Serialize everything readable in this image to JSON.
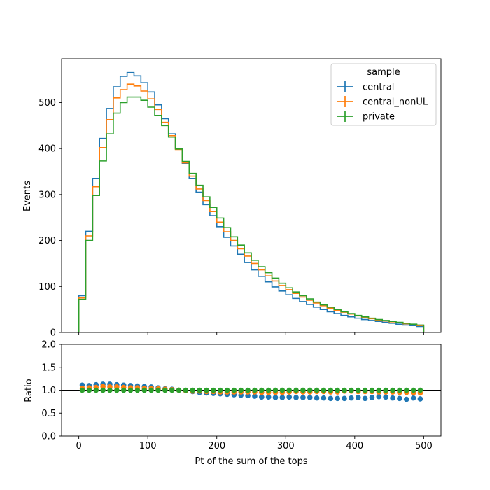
{
  "chart_data": [
    {
      "type": "line",
      "step": true,
      "xlabel": "",
      "ylabel": "Events",
      "xlim": [
        -25,
        525
      ],
      "ylim": [
        0,
        595
      ],
      "y_ticks": [
        "0",
        "100",
        "200",
        "300",
        "400",
        "500"
      ],
      "x_ticks_shown": false,
      "grid": false,
      "legend": {
        "title": "sample",
        "placement": "top-right"
      },
      "bin_edges": [
        0,
        10,
        20,
        30,
        40,
        50,
        60,
        70,
        80,
        90,
        100,
        110,
        120,
        130,
        140,
        150,
        160,
        170,
        180,
        190,
        200,
        210,
        220,
        230,
        240,
        250,
        260,
        270,
        280,
        290,
        300,
        310,
        320,
        330,
        340,
        350,
        360,
        370,
        380,
        390,
        400,
        410,
        420,
        430,
        440,
        450,
        460,
        470,
        480,
        490,
        500
      ],
      "series": [
        {
          "name": "central",
          "color": "#1f77b4",
          "values": [
            80,
            220,
            335,
            422,
            487,
            534,
            557,
            565,
            558,
            543,
            523,
            495,
            465,
            432,
            400,
            368,
            335,
            305,
            278,
            254,
            230,
            207,
            188,
            170,
            152,
            136,
            122,
            110,
            99,
            90,
            82,
            74,
            67,
            61,
            55,
            50,
            45,
            41,
            37,
            34,
            31,
            28,
            26,
            24,
            22,
            20,
            18,
            16,
            15,
            13
          ]
        },
        {
          "name": "central_nonUL",
          "color": "#ff7f0e",
          "values": [
            75,
            210,
            317,
            402,
            463,
            510,
            528,
            540,
            536,
            525,
            508,
            485,
            457,
            428,
            398,
            369,
            340,
            312,
            287,
            263,
            240,
            219,
            200,
            182,
            166,
            150,
            136,
            123,
            112,
            102,
            93,
            85,
            77,
            70,
            64,
            58,
            53,
            48,
            44,
            40,
            36,
            33,
            30,
            27,
            25,
            23,
            21,
            19,
            17,
            15
          ]
        },
        {
          "name": "private",
          "color": "#2ca02c",
          "values": [
            72,
            200,
            298,
            373,
            432,
            477,
            500,
            512,
            512,
            505,
            490,
            472,
            450,
            425,
            399,
            372,
            346,
            320,
            295,
            272,
            249,
            228,
            208,
            190,
            173,
            157,
            143,
            130,
            118,
            107,
            97,
            88,
            80,
            73,
            66,
            60,
            55,
            50,
            45,
            41,
            37,
            34,
            31,
            28,
            26,
            24,
            22,
            20,
            18,
            16
          ]
        }
      ]
    },
    {
      "type": "scatter",
      "xlabel": "Pt of the sum of the tops",
      "ylabel": "Ratio",
      "xlim": [
        -25,
        525
      ],
      "ylim": [
        0,
        2
      ],
      "x_ticks": [
        "0",
        "100",
        "200",
        "300",
        "400",
        "500"
      ],
      "y_ticks": [
        "0.0",
        "0.5",
        "1.0",
        "1.5",
        "2.0"
      ],
      "reference_line": 1.0,
      "grid": false,
      "x": [
        5,
        15,
        25,
        35,
        45,
        55,
        65,
        75,
        85,
        95,
        105,
        115,
        125,
        135,
        145,
        155,
        165,
        175,
        185,
        195,
        205,
        215,
        225,
        235,
        245,
        255,
        265,
        275,
        285,
        295,
        305,
        315,
        325,
        335,
        345,
        355,
        365,
        375,
        385,
        395,
        405,
        415,
        425,
        435,
        445,
        455,
        465,
        475,
        485,
        495
      ],
      "series": [
        {
          "name": "central",
          "color": "#1f77b4",
          "values": [
            1.11,
            1.1,
            1.12,
            1.13,
            1.13,
            1.12,
            1.11,
            1.1,
            1.09,
            1.08,
            1.07,
            1.05,
            1.03,
            1.02,
            1.0,
            0.99,
            0.97,
            0.95,
            0.94,
            0.93,
            0.92,
            0.91,
            0.9,
            0.89,
            0.88,
            0.87,
            0.85,
            0.85,
            0.84,
            0.84,
            0.85,
            0.84,
            0.84,
            0.84,
            0.83,
            0.83,
            0.82,
            0.82,
            0.82,
            0.83,
            0.84,
            0.82,
            0.84,
            0.86,
            0.85,
            0.83,
            0.82,
            0.8,
            0.83,
            0.81
          ]
        },
        {
          "name": "central_nonUL",
          "color": "#ff7f0e",
          "values": [
            1.04,
            1.05,
            1.06,
            1.08,
            1.07,
            1.07,
            1.06,
            1.05,
            1.05,
            1.04,
            1.04,
            1.03,
            1.02,
            1.01,
            1.0,
            0.99,
            0.98,
            0.98,
            0.97,
            0.97,
            0.96,
            0.96,
            0.96,
            0.96,
            0.96,
            0.96,
            0.95,
            0.95,
            0.95,
            0.95,
            0.96,
            0.97,
            0.96,
            0.96,
            0.97,
            0.97,
            0.96,
            0.96,
            0.98,
            0.98,
            0.97,
            0.97,
            0.97,
            0.96,
            0.96,
            0.96,
            0.95,
            0.95,
            0.94,
            0.94
          ]
        },
        {
          "name": "private",
          "color": "#2ca02c",
          "values": [
            1,
            1,
            1,
            1,
            1,
            1,
            1,
            1,
            1,
            1,
            1,
            1,
            1,
            1,
            1,
            1,
            1,
            1,
            1,
            1,
            1,
            1,
            1,
            1,
            1,
            1,
            1,
            1,
            1,
            1,
            1,
            1,
            1,
            1,
            1,
            1,
            1,
            1,
            1,
            1,
            1,
            1,
            1,
            1,
            1,
            1,
            1,
            1,
            1,
            1
          ]
        }
      ]
    }
  ]
}
